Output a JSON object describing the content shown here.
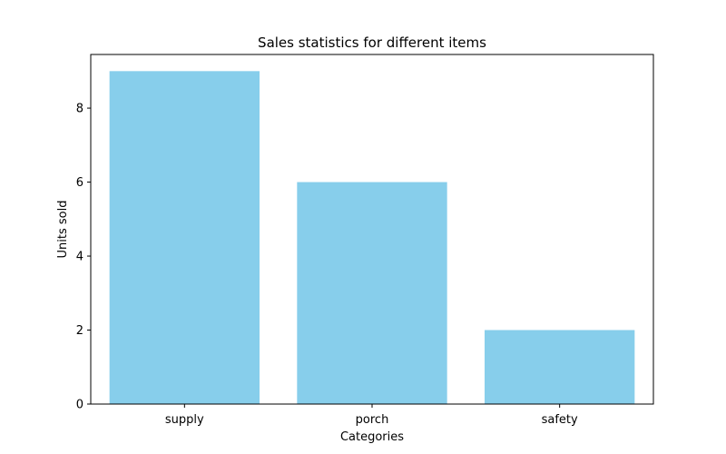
{
  "colors": {
    "bar": "#87ceeb",
    "axis": "#000000",
    "background": "#ffffff"
  },
  "chart_data": {
    "type": "bar",
    "title": "Sales statistics for different items",
    "xlabel": "Categories",
    "ylabel": "Units sold",
    "categories": [
      "supply",
      "porch",
      "safety"
    ],
    "values": [
      9,
      6,
      2
    ],
    "ylim": [
      0,
      9.45
    ],
    "yticks": [
      0,
      2,
      4,
      6,
      8
    ],
    "grid": false,
    "legend": "none"
  }
}
